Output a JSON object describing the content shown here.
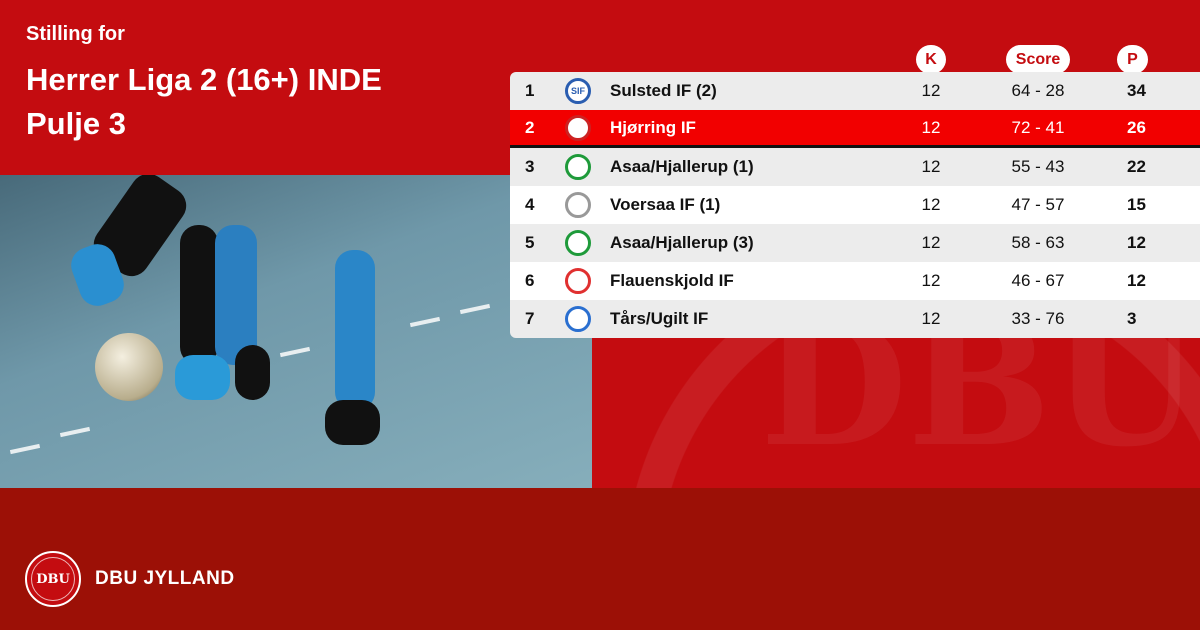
{
  "header": {
    "subtitle": "Stilling for",
    "title_line1": "Herrer Liga 2 (16+) INDE",
    "title_line2": "Pulje 3"
  },
  "columns": {
    "k": "K",
    "score": "Score",
    "p": "P"
  },
  "colors": {
    "background_red": "#c40c10",
    "footer_red": "#9c1006",
    "highlight": "#f20000"
  },
  "rows": [
    {
      "rank": "1",
      "team": "Sulsted IF (2)",
      "logo": "SIF",
      "k": "12",
      "score": "64 - 28",
      "p": "34",
      "logo_color": "#2a5db0"
    },
    {
      "rank": "2",
      "team": "Hjørring IF",
      "logo": "",
      "k": "12",
      "score": "72 - 41",
      "p": "26",
      "logo_color": "#cc2222",
      "highlighted": true
    },
    {
      "rank": "3",
      "team": "Asaa/Hjallerup (1)",
      "logo": "",
      "k": "12",
      "score": "55 - 43",
      "p": "22",
      "logo_color": "#1e9a3a"
    },
    {
      "rank": "4",
      "team": "Voersaa IF (1)",
      "logo": "",
      "k": "12",
      "score": "47 - 57",
      "p": "15",
      "logo_color": "#999999"
    },
    {
      "rank": "5",
      "team": "Asaa/Hjallerup (3)",
      "logo": "",
      "k": "12",
      "score": "58 - 63",
      "p": "12",
      "logo_color": "#1e9a3a"
    },
    {
      "rank": "6",
      "team": "Flauenskjold IF",
      "logo": "",
      "k": "12",
      "score": "46 - 67",
      "p": "12",
      "logo_color": "#e03030"
    },
    {
      "rank": "7",
      "team": "Tårs/Ugilt IF",
      "logo": "",
      "k": "12",
      "score": "33 - 76",
      "p": "3",
      "logo_color": "#2a6fd0"
    }
  ],
  "footer": {
    "brand": "DBU JYLLAND",
    "logo_text": "DBU"
  }
}
